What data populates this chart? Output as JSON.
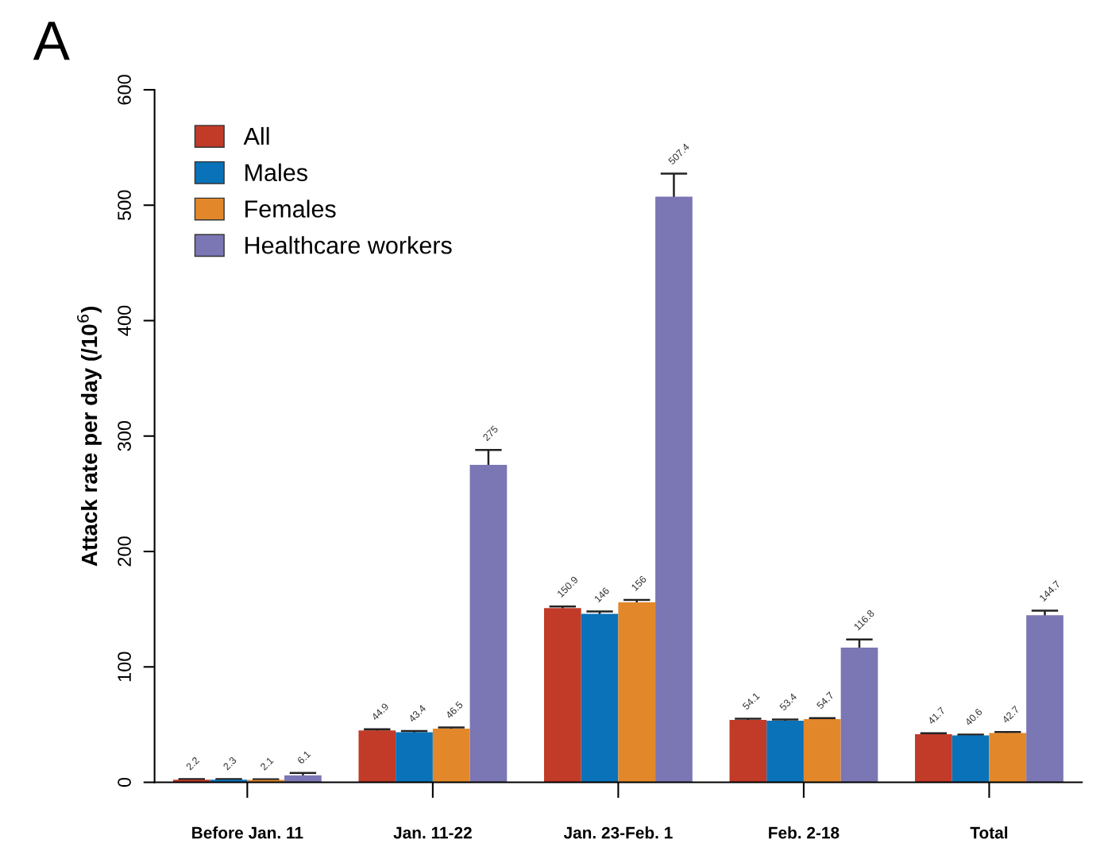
{
  "chart_data": {
    "type": "bar",
    "ylabel": "Attack rate per day (/10$^{6}$)",
    "annotations": [
      "A"
    ],
    "categories": [
      "Before Jan. 11",
      "Jan. 11-22",
      "Jan. 23-Feb. 1",
      "Feb. 2-18",
      "Total"
    ],
    "series": [
      {
        "name": "All",
        "color": "#c13b28",
        "values": [
          2.2,
          44.9,
          150.9,
          54.1,
          41.7
        ],
        "errors": [
          0.5,
          1,
          1.5,
          1,
          0.8
        ]
      },
      {
        "name": "Males",
        "color": "#0a72b8",
        "values": [
          2.3,
          43.4,
          146,
          53.4,
          40.6
        ],
        "errors": [
          0.5,
          1,
          2,
          1,
          0.8
        ]
      },
      {
        "name": "Females",
        "color": "#e2882a",
        "values": [
          2.1,
          46.5,
          156,
          54.7,
          42.7
        ],
        "errors": [
          0.5,
          1,
          2,
          1,
          0.8
        ]
      },
      {
        "name": "Healthcare workers",
        "color": "#7b76b4",
        "values": [
          6.1,
          275,
          507.4,
          116.8,
          144.7
        ],
        "errors": [
          2,
          13,
          20,
          7,
          4
        ]
      }
    ],
    "data_labels": true,
    "ylim": [
      0,
      600
    ],
    "yticks": [
      0,
      100,
      200,
      300,
      400,
      500,
      600
    ],
    "legend": "top left",
    "grid": false
  }
}
